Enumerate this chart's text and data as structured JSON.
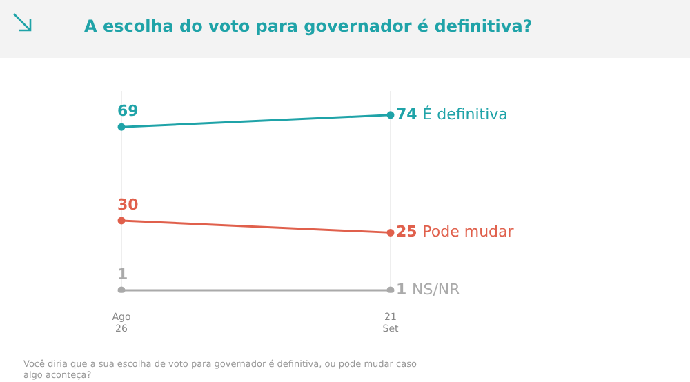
{
  "chart_data": {
    "type": "line",
    "title": "A escolha do voto para governador é definitiva?",
    "categories": [
      "Ago 26",
      "21 Set"
    ],
    "series": [
      {
        "name": "É definitiva",
        "color": "#1fa3a8",
        "values": [
          69,
          74
        ]
      },
      {
        "name": "Pode mudar",
        "color": "#e0604c",
        "values": [
          30,
          25
        ]
      },
      {
        "name": "NS/NR",
        "color": "#aaaaaa",
        "values": [
          1,
          1
        ]
      }
    ],
    "ylim": [
      0,
      84
    ],
    "tick_labels": "x",
    "grid": "x",
    "legend": false,
    "marker": "circle",
    "line_style": "solid",
    "data_labels": true,
    "annotations": [
      "Você diria que a sua escolha de voto para governador é definitiva, ou pode mudar caso algo aconteça?"
    ]
  }
}
